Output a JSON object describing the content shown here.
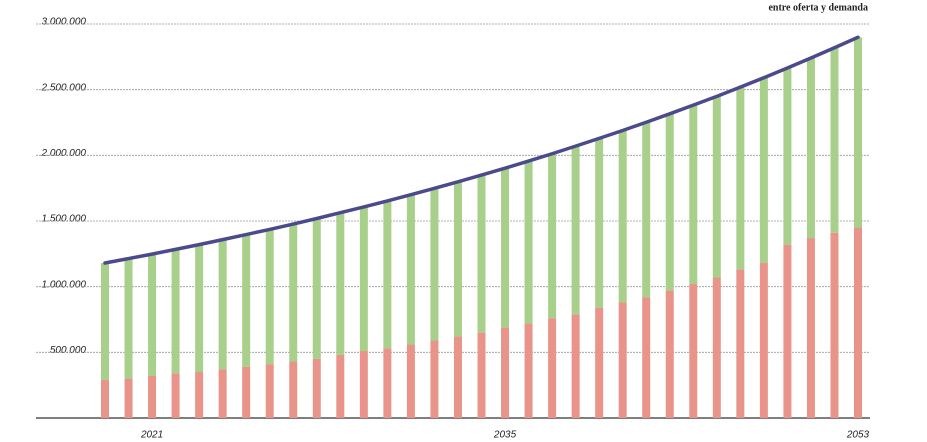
{
  "chart_data": {
    "type": "stacked_bar_line",
    "annotation": "entre oferta y demanda",
    "categories": [
      null,
      null,
      "2021",
      null,
      null,
      null,
      null,
      null,
      null,
      null,
      null,
      null,
      null,
      null,
      null,
      null,
      null,
      "2035",
      null,
      null,
      null,
      null,
      null,
      null,
      null,
      null,
      null,
      null,
      null,
      null,
      null,
      null,
      "2053"
    ],
    "series": [
      {
        "color": "#e8948a",
        "values": [
          290000,
          300000,
          320000,
          340000,
          350000,
          370000,
          390000,
          410000,
          430000,
          450000,
          480000,
          510000,
          530000,
          560000,
          590000,
          620000,
          650000,
          690000,
          720000,
          760000,
          790000,
          840000,
          880000,
          920000,
          970000,
          1020000,
          1070000,
          1130000,
          1180000,
          1320000,
          1370000,
          1410000,
          1450000
        ]
      },
      {
        "color": "#a8d08a",
        "values": [
          890000,
          914000,
          928000,
          944000,
          970000,
          988000,
          1007000,
          1026000,
          1047000,
          1069000,
          1083000,
          1097000,
          1123000,
          1140000,
          1159000,
          1178000,
          1200000,
          1212000,
          1236000,
          1252000,
          1280000,
          1289000,
          1309000,
          1332000,
          1346000,
          1362000,
          1379000,
          1389000,
          1411000,
          1345000,
          1371000,
          1409000,
          1449000
        ]
      },
      {
        "type": "line",
        "color": "#4b4a8c",
        "values": [
          1180000,
          1214000,
          1248000,
          1284000,
          1320000,
          1358000,
          1397000,
          1436000,
          1477000,
          1519000,
          1563000,
          1607000,
          1653000,
          1700000,
          1749000,
          1798000,
          1850000,
          1902000,
          1956000,
          2012000,
          2070000,
          2129000,
          2189000,
          2252000,
          2316000,
          2382000,
          2449000,
          2519000,
          2591000,
          2665000,
          2741000,
          2819000,
          2899000
        ]
      }
    ],
    "ylim": [
      0,
      3000000
    ],
    "yticks": [
      {
        "value": 500000,
        "label": "500.000"
      },
      {
        "value": 1000000,
        "label": "1.000.000"
      },
      {
        "value": 1500000,
        "label": "1.500.000"
      },
      {
        "value": 2000000,
        "label": "2.000.000"
      },
      {
        "value": 2500000,
        "label": "2.500.000"
      },
      {
        "value": 3000000,
        "label": "3.000.000"
      }
    ],
    "grid": true
  }
}
